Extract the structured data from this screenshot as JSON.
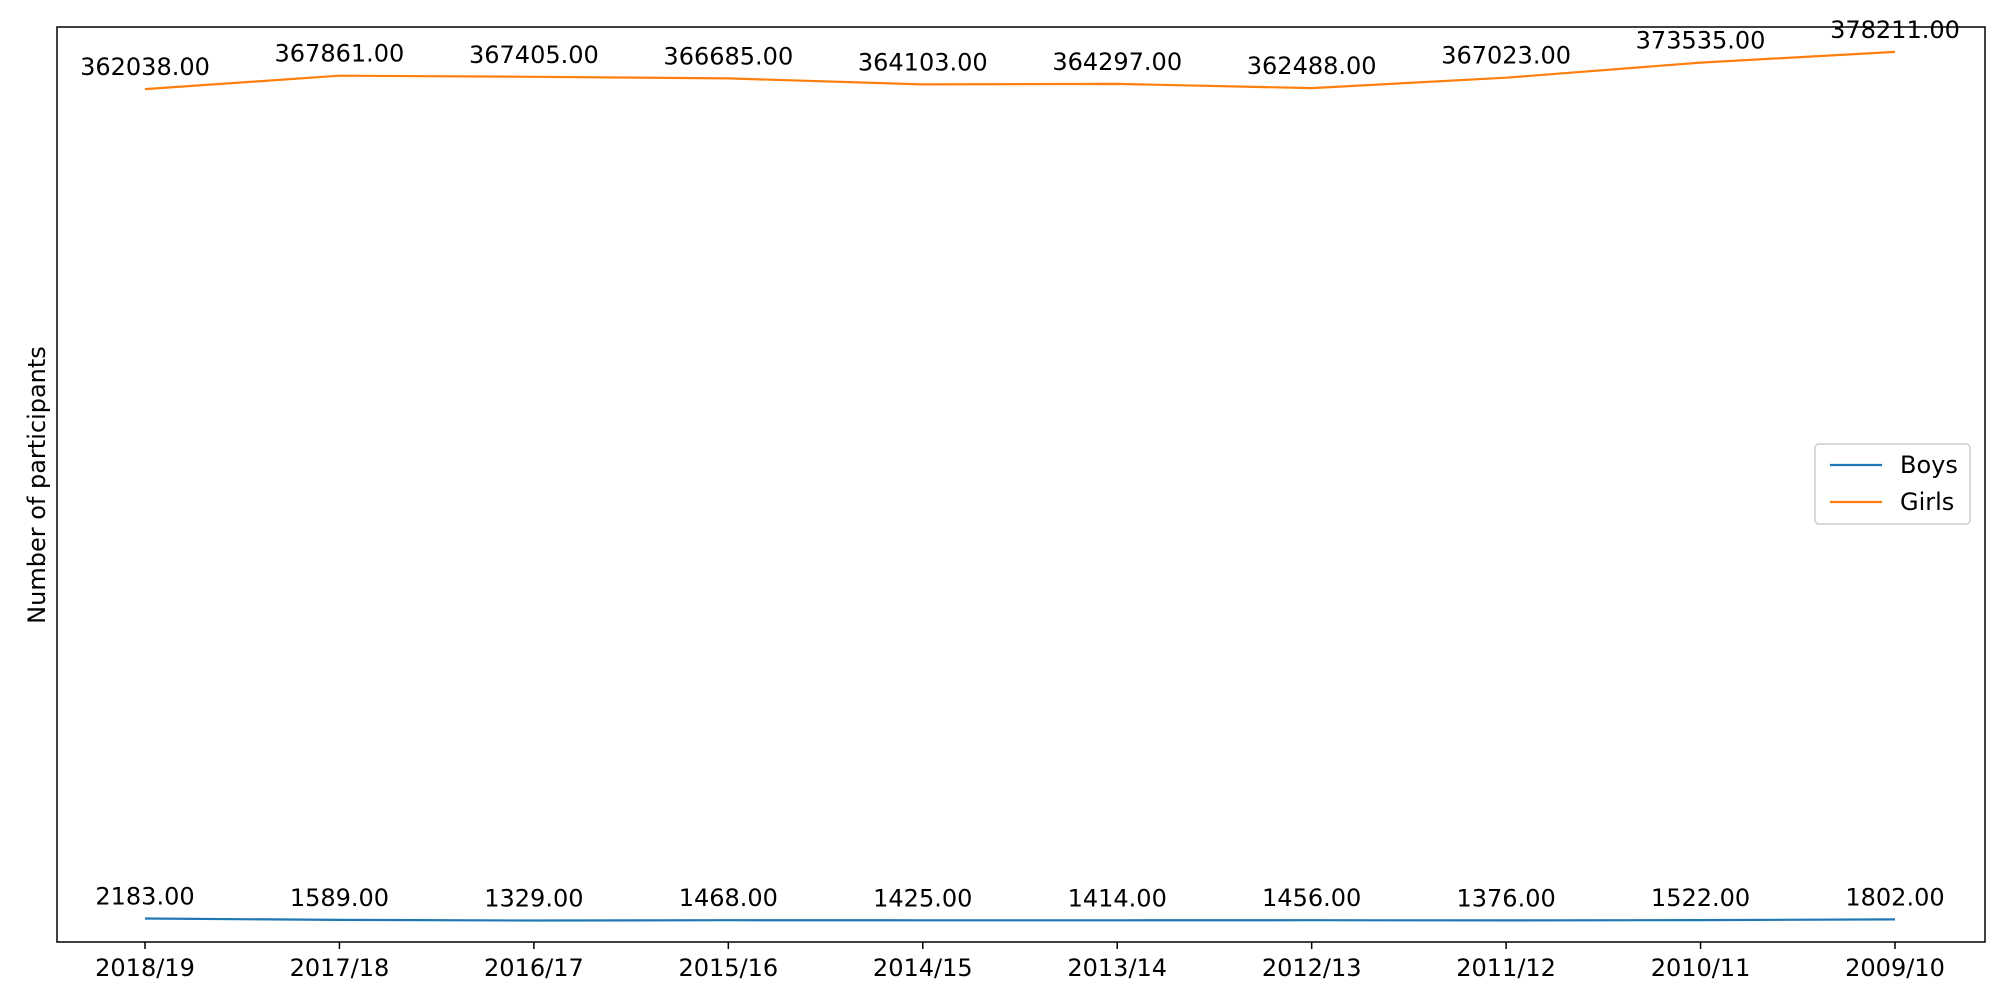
{
  "chart_data": {
    "type": "line",
    "title": "",
    "xlabel": "",
    "ylabel": "Number of participants",
    "categories": [
      "2018/19",
      "2017/18",
      "2016/17",
      "2015/16",
      "2014/15",
      "2013/14",
      "2012/13",
      "2011/12",
      "2010/11",
      "2009/10"
    ],
    "series": [
      {
        "name": "Boys",
        "color": "#1f77b4",
        "values": [
          2183,
          1589,
          1329,
          1468,
          1425,
          1414,
          1456,
          1376,
          1522,
          1802
        ],
        "labels": [
          "2183.00",
          "1589.00",
          "1329.00",
          "1468.00",
          "1425.00",
          "1414.00",
          "1456.00",
          "1376.00",
          "1522.00",
          "1802.00"
        ]
      },
      {
        "name": "Girls",
        "color": "#ff7f0e",
        "values": [
          362038,
          367861,
          367405,
          366685,
          364103,
          364297,
          362488,
          367023,
          373535,
          378211
        ],
        "labels": [
          "362038.00",
          "367861.00",
          "367405.00",
          "366685.00",
          "364103.00",
          "364297.00",
          "362488.00",
          "367023.00",
          "373535.00",
          "378211.00"
        ]
      }
    ],
    "ylim": [
      -8000,
      389000
    ],
    "grid": false,
    "yticks_visible": false,
    "legend_position": "center-right"
  }
}
